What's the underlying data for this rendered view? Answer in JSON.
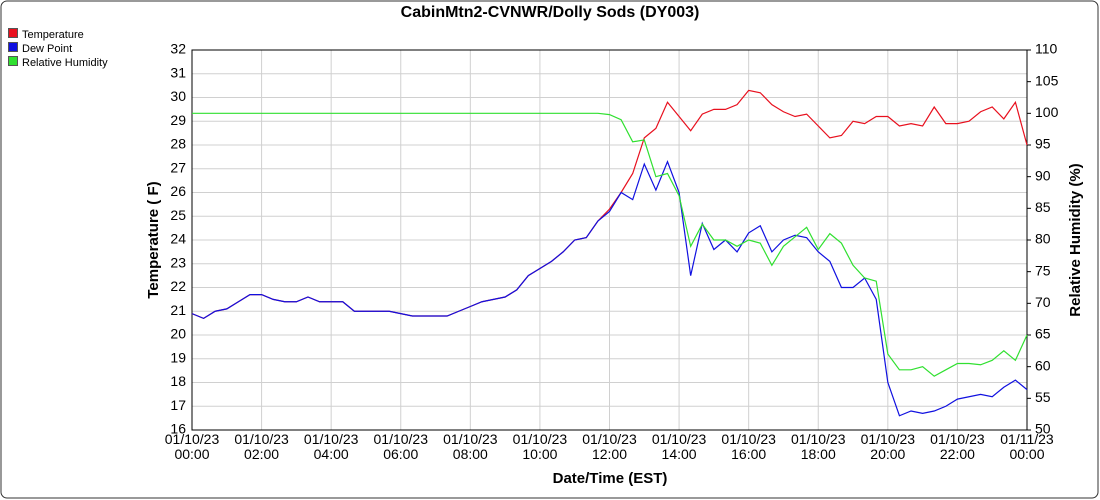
{
  "chart_data": {
    "type": "line",
    "title": "CabinMtn2-CVNWR/Dolly Sods (DY003)",
    "xlabel": "Date/Time (EST)",
    "ylabel": "Temperature ( F)",
    "y2label": "Relative Humidity (%)",
    "x": [
      "01/10/23 00:00",
      "01/10/23 00:20",
      "01/10/23 00:40",
      "01/10/23 01:00",
      "01/10/23 01:20",
      "01/10/23 01:40",
      "01/10/23 02:00",
      "01/10/23 02:20",
      "01/10/23 02:40",
      "01/10/23 03:00",
      "01/10/23 03:20",
      "01/10/23 03:40",
      "01/10/23 04:00",
      "01/10/23 04:20",
      "01/10/23 04:40",
      "01/10/23 05:00",
      "01/10/23 05:20",
      "01/10/23 05:40",
      "01/10/23 06:00",
      "01/10/23 06:20",
      "01/10/23 06:40",
      "01/10/23 07:00",
      "01/10/23 07:20",
      "01/10/23 07:40",
      "01/10/23 08:00",
      "01/10/23 08:20",
      "01/10/23 08:40",
      "01/10/23 09:00",
      "01/10/23 09:20",
      "01/10/23 09:40",
      "01/10/23 10:00",
      "01/10/23 10:20",
      "01/10/23 10:40",
      "01/10/23 11:00",
      "01/10/23 11:20",
      "01/10/23 11:40",
      "01/10/23 12:00",
      "01/10/23 12:20",
      "01/10/23 12:40",
      "01/10/23 13:00",
      "01/10/23 13:20",
      "01/10/23 13:40",
      "01/10/23 14:00",
      "01/10/23 14:20",
      "01/10/23 14:40",
      "01/10/23 15:00",
      "01/10/23 15:20",
      "01/10/23 15:40",
      "01/10/23 16:00",
      "01/10/23 16:20",
      "01/10/23 16:40",
      "01/10/23 17:00",
      "01/10/23 17:20",
      "01/10/23 17:40",
      "01/10/23 18:00",
      "01/10/23 18:20",
      "01/10/23 18:40",
      "01/10/23 19:00",
      "01/10/23 19:20",
      "01/10/23 19:40",
      "01/10/23 20:00",
      "01/10/23 20:20",
      "01/10/23 20:40",
      "01/10/23 21:00",
      "01/10/23 21:20",
      "01/10/23 21:40",
      "01/10/23 22:00",
      "01/10/23 22:20",
      "01/10/23 22:40",
      "01/10/23 23:00",
      "01/10/23 23:20",
      "01/10/23 23:40",
      "01/11/23 00:00"
    ],
    "series": [
      {
        "name": "Temperature",
        "color": "#e8101e",
        "values": [
          20.9,
          20.7,
          21.0,
          21.1,
          21.4,
          21.7,
          21.7,
          21.5,
          21.4,
          21.4,
          21.6,
          21.4,
          21.4,
          21.4,
          21.0,
          21.0,
          21.0,
          21.0,
          20.9,
          20.8,
          20.8,
          20.8,
          20.8,
          21.0,
          21.2,
          21.4,
          21.5,
          21.6,
          21.9,
          22.5,
          22.8,
          23.1,
          23.5,
          24.0,
          24.1,
          24.8,
          25.3,
          26.0,
          26.8,
          28.3,
          28.7,
          29.8,
          29.2,
          28.6,
          29.3,
          29.5,
          29.5,
          29.7,
          30.3,
          30.2,
          29.7,
          29.4,
          29.2,
          29.3,
          28.8,
          28.3,
          28.4,
          29.0,
          28.9,
          29.2,
          29.2,
          28.8,
          28.9,
          28.8,
          29.6,
          28.9,
          28.9,
          29.0,
          29.4,
          29.6,
          29.1,
          29.8,
          28.0
        ]
      },
      {
        "name": "Dew Point",
        "color": "#1010e0",
        "values": [
          20.9,
          20.7,
          21.0,
          21.1,
          21.4,
          21.7,
          21.7,
          21.5,
          21.4,
          21.4,
          21.6,
          21.4,
          21.4,
          21.4,
          21.0,
          21.0,
          21.0,
          21.0,
          20.9,
          20.8,
          20.8,
          20.8,
          20.8,
          21.0,
          21.2,
          21.4,
          21.5,
          21.6,
          21.9,
          22.5,
          22.8,
          23.1,
          23.5,
          24.0,
          24.1,
          24.8,
          25.2,
          26.0,
          25.7,
          27.2,
          26.1,
          27.3,
          26.0,
          22.5,
          24.7,
          23.6,
          24.0,
          23.5,
          24.3,
          24.6,
          23.5,
          24.0,
          24.2,
          24.1,
          23.5,
          23.1,
          22.0,
          22.0,
          22.4,
          21.5,
          18.0,
          16.6,
          16.8,
          16.7,
          16.8,
          17.0,
          17.3,
          17.4,
          17.5,
          17.4,
          17.8,
          18.1,
          17.7
        ]
      },
      {
        "name": "Relative Humidity",
        "color": "#30e030",
        "axis": "y2",
        "values": [
          100,
          100,
          100,
          100,
          100,
          100,
          100,
          100,
          100,
          100,
          100,
          100,
          100,
          100,
          100,
          100,
          100,
          100,
          100,
          100,
          100,
          100,
          100,
          100,
          100,
          100,
          100,
          100,
          100,
          100,
          100,
          100,
          100,
          100,
          100,
          100,
          99.8,
          99,
          95.5,
          95.8,
          90,
          90.5,
          87,
          79,
          82.5,
          80,
          80,
          79,
          80,
          79.5,
          76,
          79,
          80.5,
          82,
          78.5,
          81,
          79.5,
          76,
          74,
          73.5,
          62,
          59.5,
          59.5,
          60,
          58.5,
          59.5,
          60.5,
          60.5,
          60.3,
          61,
          62.5,
          61,
          65
        ]
      }
    ],
    "xticks": [
      "01/10/23 00:00",
      "01/10/23 02:00",
      "01/10/23 04:00",
      "01/10/23 06:00",
      "01/10/23 08:00",
      "01/10/23 10:00",
      "01/10/23 12:00",
      "01/10/23 14:00",
      "01/10/23 16:00",
      "01/10/23 18:00",
      "01/10/23 20:00",
      "01/10/23 22:00",
      "01/11/23 00:00"
    ],
    "xlim": [
      "01/10/23 00:00",
      "01/11/23 00:00"
    ],
    "ylim": [
      16,
      32
    ],
    "yticks": [
      16,
      17,
      18,
      19,
      20,
      21,
      22,
      23,
      24,
      25,
      26,
      27,
      28,
      29,
      30,
      31,
      32
    ],
    "y2lim": [
      50,
      110
    ],
    "y2ticks": [
      50,
      55,
      60,
      65,
      70,
      75,
      80,
      85,
      90,
      95,
      100,
      105,
      110
    ],
    "grid": true,
    "legend": "top-left"
  }
}
